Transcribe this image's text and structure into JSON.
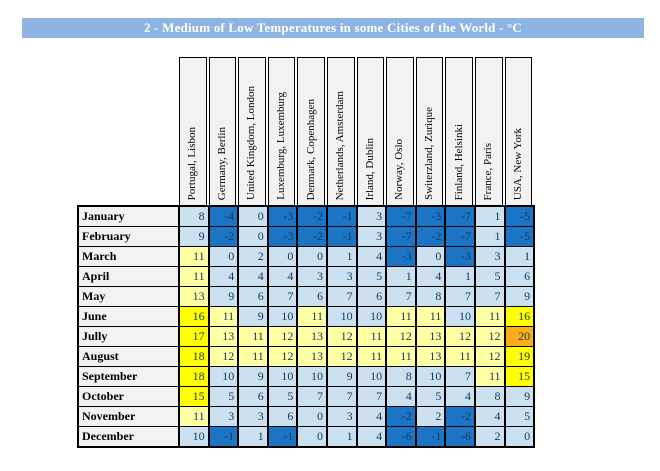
{
  "title": "2 - Medium of Low Temperatures in some Cities of the World - °C",
  "theme": {
    "title_bar_bg": "#8DB4E2",
    "title_text": "#FFFFFF",
    "header_bg": "#F2F2F2",
    "month_bg": "#F2F2F2",
    "grid_border": "#000000",
    "number_text": "#17375E",
    "month_text": "#000000"
  },
  "chart_data": {
    "type": "heatmap",
    "title": "2 - Medium of Low Temperatures in some Cities of the World - °C",
    "unit": "°C",
    "columns": [
      "Portugal, Lisbon",
      "Germany, Berlin",
      "United Kingdom, London",
      "Luxemburg, Luxemburg",
      "Denmark, Copenhagen",
      "Netherlands, Amsterdam",
      "Irland, Dublin",
      "Norway, Oslo",
      "Switerzland, Zurique",
      "Finland, Helsinki",
      "France, Paris",
      "USA, New York"
    ],
    "rows": [
      "January",
      "February",
      "March",
      "April",
      "May",
      "June",
      "Jully",
      "August",
      "September",
      "October",
      "November",
      "December"
    ],
    "values": [
      [
        8,
        -4,
        0,
        -3,
        -2,
        -1,
        3,
        -7,
        -3,
        -7,
        1,
        -5
      ],
      [
        9,
        -2,
        0,
        -3,
        -2,
        -1,
        3,
        -7,
        -2,
        -7,
        1,
        -5
      ],
      [
        11,
        0,
        2,
        0,
        0,
        1,
        4,
        -3,
        0,
        -3,
        3,
        1
      ],
      [
        11,
        4,
        4,
        4,
        3,
        3,
        5,
        1,
        4,
        1,
        5,
        6
      ],
      [
        13,
        9,
        6,
        7,
        6,
        7,
        6,
        7,
        8,
        7,
        7,
        9
      ],
      [
        16,
        11,
        9,
        10,
        11,
        10,
        10,
        11,
        11,
        10,
        11,
        16
      ],
      [
        17,
        13,
        11,
        12,
        13,
        12,
        11,
        12,
        13,
        12,
        12,
        20
      ],
      [
        18,
        12,
        11,
        12,
        13,
        12,
        11,
        11,
        13,
        11,
        12,
        19
      ],
      [
        18,
        10,
        9,
        10,
        10,
        9,
        10,
        8,
        10,
        7,
        11,
        15
      ],
      [
        15,
        5,
        6,
        5,
        7,
        7,
        7,
        4,
        5,
        4,
        8,
        9
      ],
      [
        11,
        3,
        3,
        6,
        0,
        3,
        4,
        -2,
        2,
        -2,
        4,
        5
      ],
      [
        10,
        -1,
        1,
        -1,
        0,
        1,
        4,
        -6,
        -1,
        -6,
        2,
        0
      ]
    ],
    "color_scale": [
      {
        "max": -1,
        "bg": "#1B74C4"
      },
      {
        "max": 10,
        "bg": "#CCE1EF"
      },
      {
        "max": 14,
        "bg": "#FFFFA3"
      },
      {
        "max": 19,
        "bg": "#FFFF00"
      },
      {
        "max": 999,
        "bg": "#FBAE17"
      }
    ],
    "legend_position": "none",
    "grid": true
  }
}
